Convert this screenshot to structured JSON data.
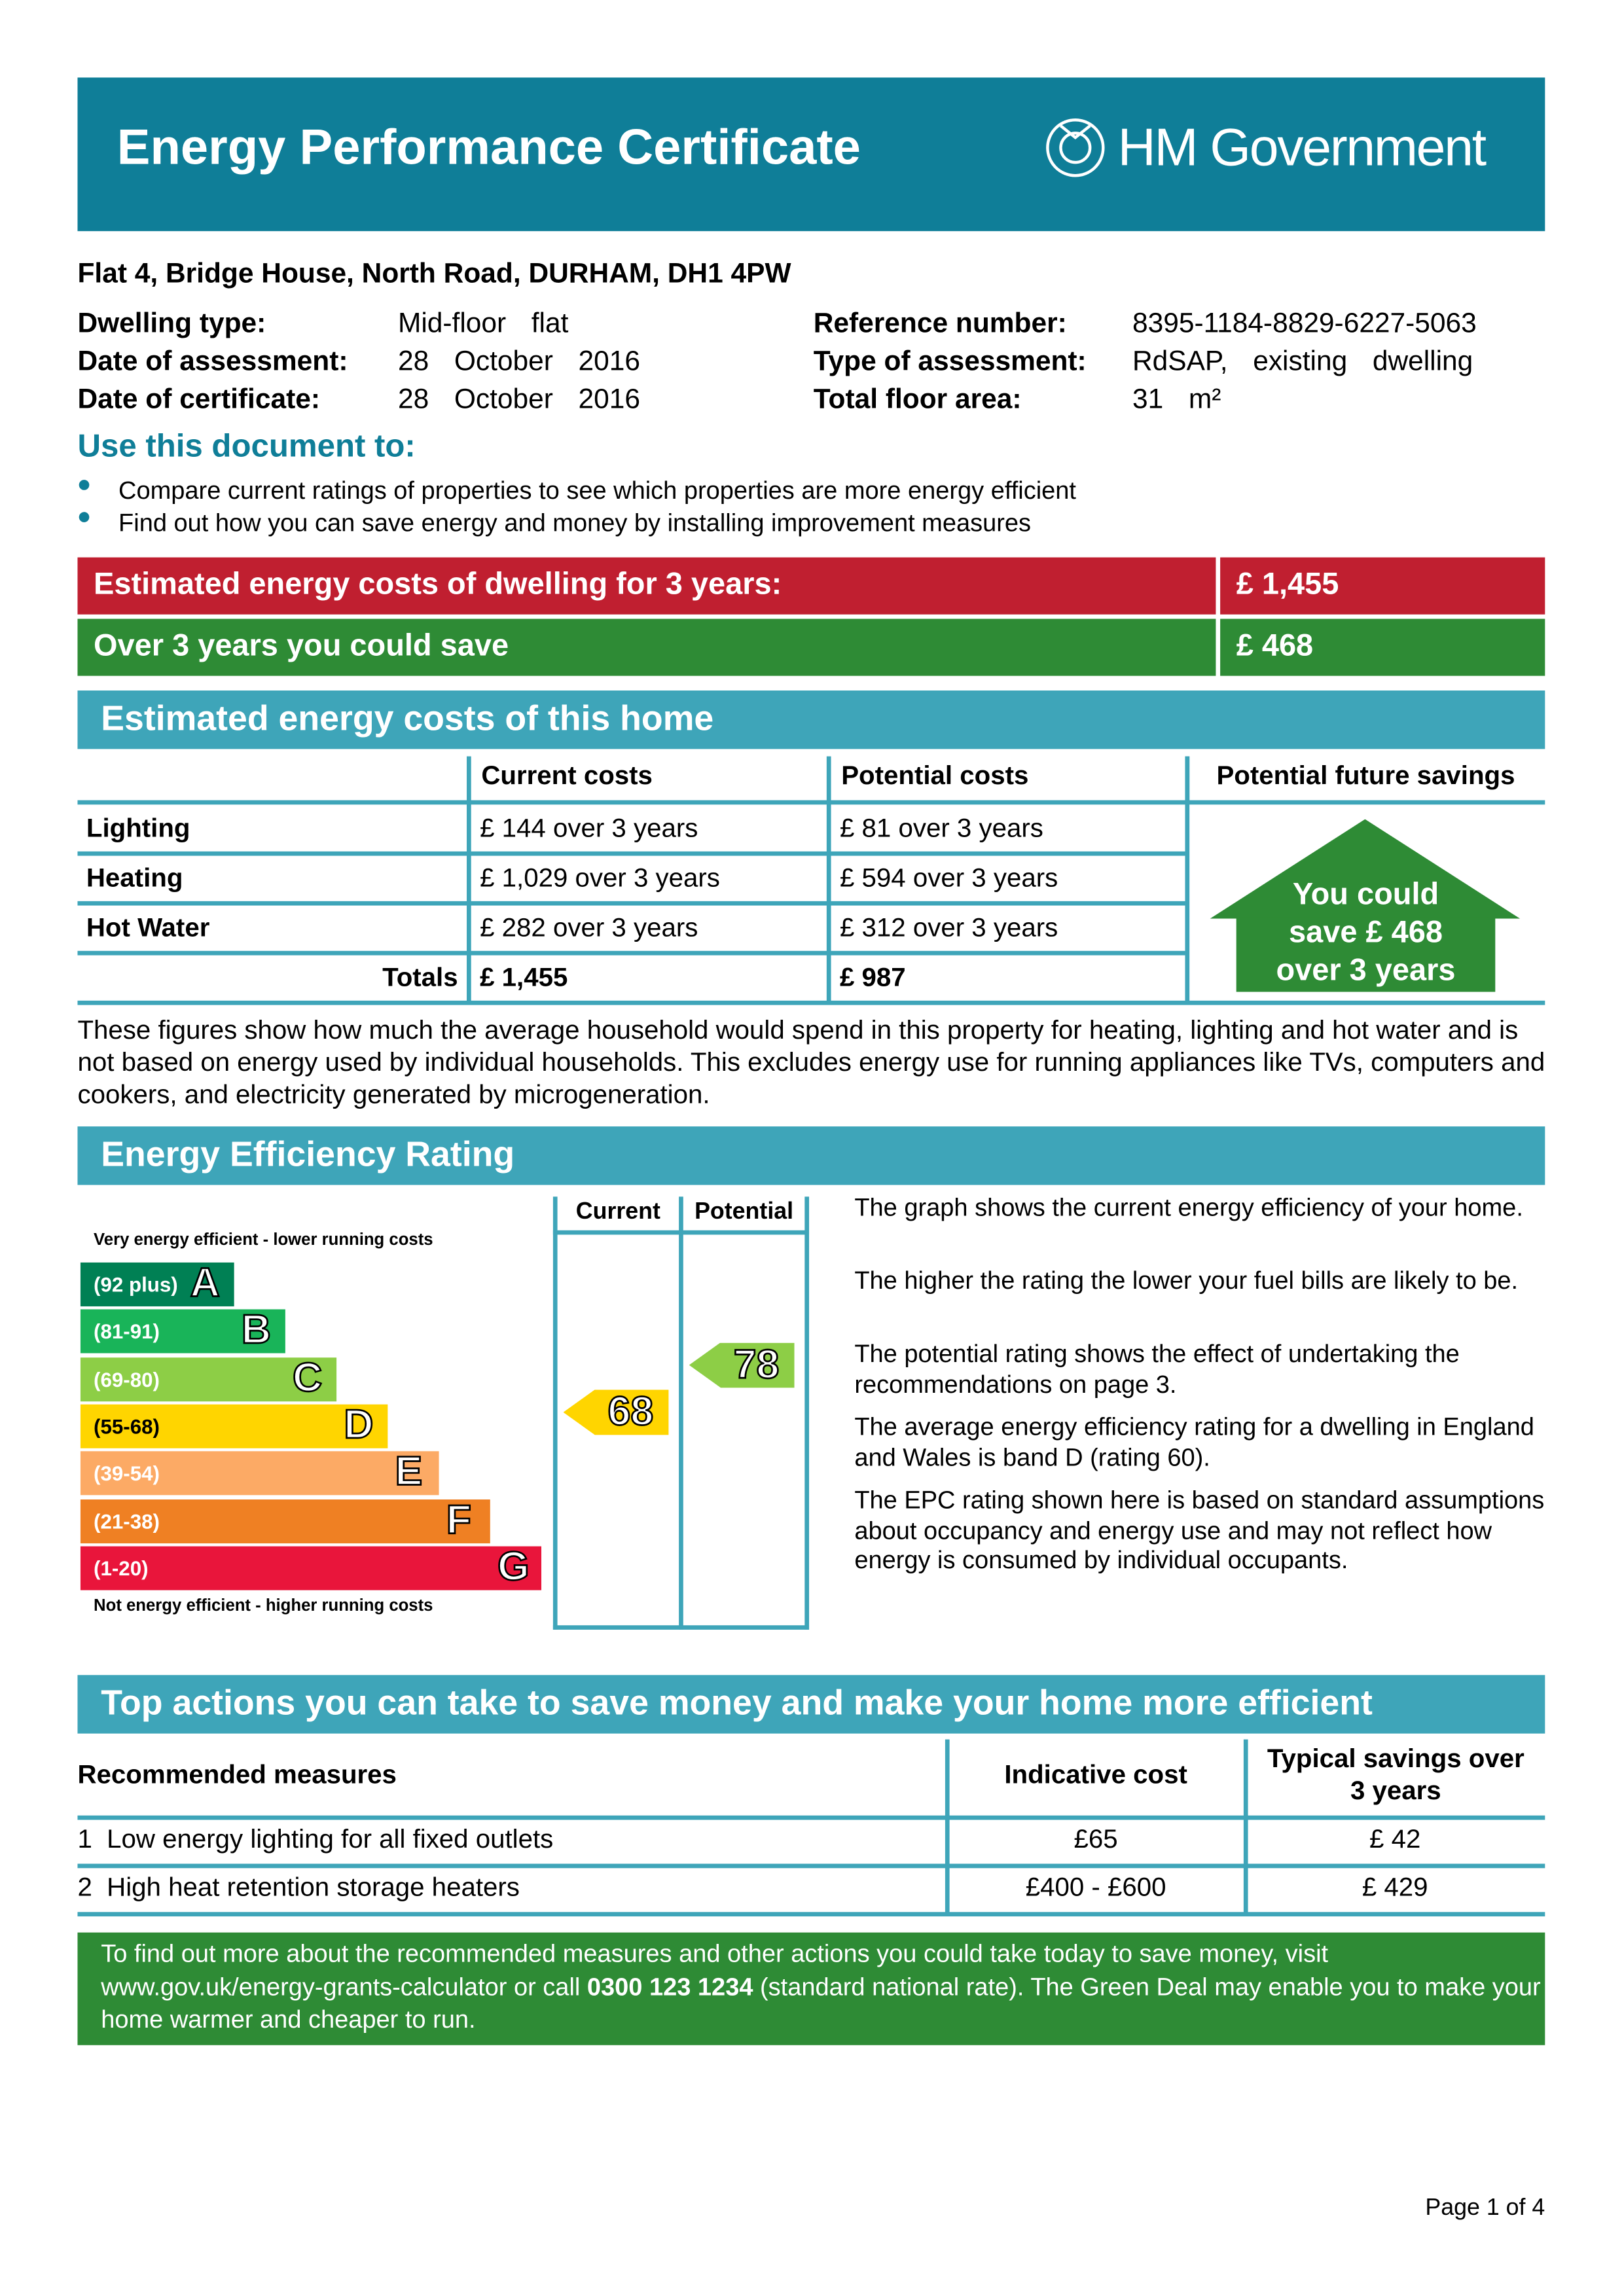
{
  "header": {
    "title": "Energy Performance Certificate",
    "logo": "HM Government"
  },
  "address": "Flat 4, Bridge House, North Road, DURHAM, DH1 4PW",
  "details_left": [
    [
      "Dwelling type:",
      "Mid-floor flat"
    ],
    [
      "Date of assessment:",
      "28 October 2016"
    ],
    [
      "Date of certificate:",
      "28 October 2016"
    ]
  ],
  "details_right": [
    [
      "Reference number:",
      "8395-1184-8829-6227-5063"
    ],
    [
      "Type of assessment:",
      "RdSAP, existing dwelling"
    ],
    [
      "Total floor area:",
      "31 m²"
    ]
  ],
  "use_heading": "Use this document to:",
  "use_items": [
    "Compare current ratings of properties to see which properties are more energy efficient",
    "Find out how you can save energy and money by installing improvement measures"
  ],
  "cost_banner": [
    {
      "label": "Estimated energy costs of dwelling for 3 years:",
      "value": "£ 1,455"
    },
    {
      "label": "Over 3 years you could save",
      "value": "£ 468"
    }
  ],
  "costs": {
    "heading": "Estimated energy costs of this home",
    "columns": [
      "Current costs",
      "Potential costs",
      "Potential future savings"
    ],
    "rows": [
      [
        "Lighting",
        "£ 144 over 3 years",
        "£ 81 over 3 years"
      ],
      [
        "Heating",
        "£ 1,029 over 3 years",
        "£ 594 over 3 years"
      ],
      [
        "Hot Water",
        "£ 282 over 3 years",
        "£ 312 over 3 years"
      ]
    ],
    "totals": [
      "Totals",
      "£ 1,455",
      "£ 987"
    ],
    "savings_badge": [
      "You could",
      "save £ 468",
      "over 3 years"
    ],
    "note": "These figures show how much the average household would spend in this property for heating, lighting and hot water and is not based on energy used by individual households. This excludes energy use for running appliances like TVs, computers and cookers, and electricity generated by microgeneration."
  },
  "rating": {
    "heading": "Energy Efficiency Rating",
    "columns": [
      "Current",
      "Potential"
    ],
    "top_note": "Very energy efficient - lower running costs",
    "bottom_note": "Not energy efficient - higher running costs",
    "bands": [
      {
        "range": "(92 plus)",
        "letter": "A",
        "color": "#008054"
      },
      {
        "range": "(81-91)",
        "letter": "B",
        "color": "#19b459"
      },
      {
        "range": "(69-80)",
        "letter": "C",
        "color": "#8dce46"
      },
      {
        "range": "(55-68)",
        "letter": "D",
        "color": "#ffd500"
      },
      {
        "range": "(39-54)",
        "letter": "E",
        "color": "#fcaa65"
      },
      {
        "range": "(21-38)",
        "letter": "F",
        "color": "#ef8023"
      },
      {
        "range": "(1-20)",
        "letter": "G",
        "color": "#e9153b"
      }
    ],
    "current": 68,
    "potential": 78,
    "paragraphs": [
      "The graph shows the current energy efficiency of your home.",
      "The higher the rating the lower your fuel bills are likely to be.",
      "The potential rating shows the effect of undertaking the recommendations on page 3.",
      "The average energy efficiency rating for a dwelling in England and Wales is band D (rating 60).",
      "The EPC rating shown here is based on standard assumptions about occupancy and energy use and may not reflect how energy is consumed by individual occupants."
    ]
  },
  "actions": {
    "heading": "Top actions you can take to save money and make your home more efficient",
    "columns": [
      "Recommended measures",
      "Indicative cost",
      "Typical savings over 3 years"
    ],
    "rows": [
      [
        "1",
        "Low energy lighting for all fixed outlets",
        "£65",
        "£ 42"
      ],
      [
        "2",
        "High heat retention storage heaters",
        "£400 - £600",
        "£ 429"
      ]
    ]
  },
  "footer_parts": [
    "To find out more about the recommended measures and other actions you could take today to save money, visit www.gov.uk/energy-grants-calculator or call ",
    "0300 123 1234",
    " (standard national rate). The Green Deal may enable you to make your home warmer and cheaper to run."
  ],
  "page": "Page 1 of 4"
}
